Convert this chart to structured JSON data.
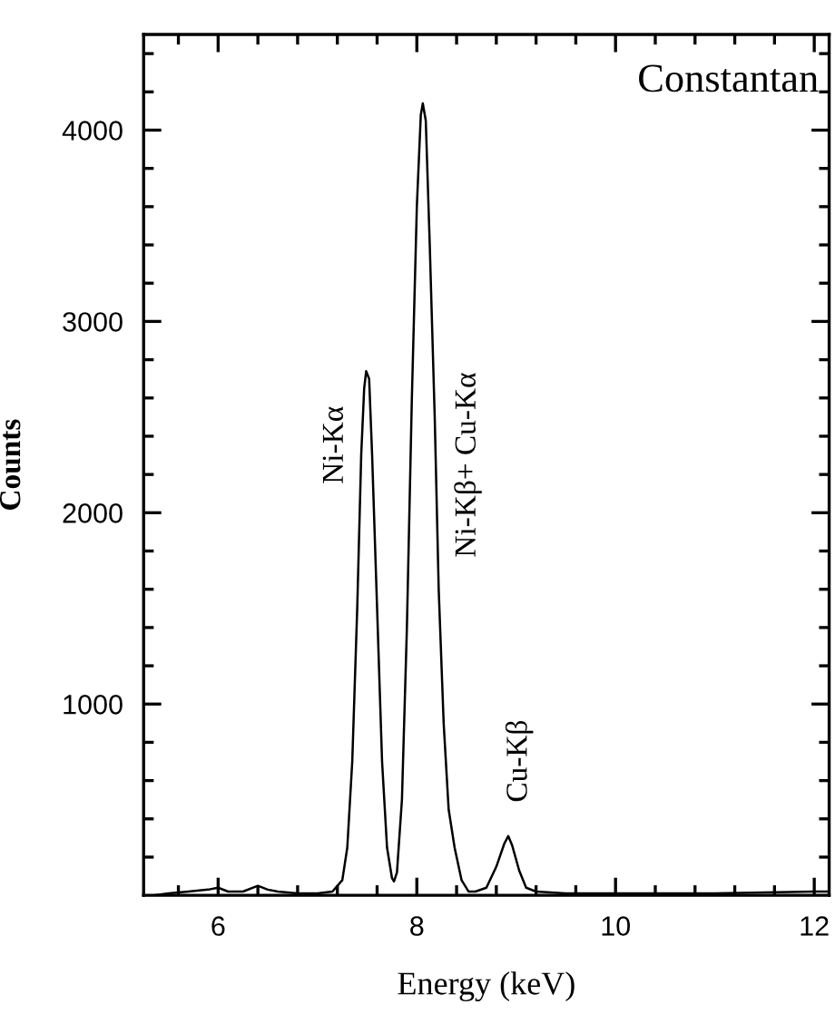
{
  "chart_data": {
    "type": "line",
    "xlabel": "Energy (keV)",
    "ylabel": "Counts",
    "x": [
      5.35,
      5.5,
      5.7,
      5.9,
      6.0,
      6.1,
      6.25,
      6.4,
      6.5,
      6.6,
      6.8,
      7.0,
      7.15,
      7.25,
      7.3,
      7.35,
      7.4,
      7.44,
      7.47,
      7.49,
      7.52,
      7.55,
      7.6,
      7.65,
      7.7,
      7.75,
      7.77,
      7.8,
      7.85,
      7.9,
      7.95,
      8.0,
      8.04,
      8.06,
      8.09,
      8.13,
      8.18,
      8.22,
      8.27,
      8.32,
      8.38,
      8.45,
      8.52,
      8.59,
      8.7,
      8.8,
      8.88,
      8.92,
      8.96,
      9.03,
      9.1,
      9.2,
      9.5,
      10.0,
      11.0,
      12.0,
      12.15
    ],
    "series": [
      {
        "color": "#000000",
        "values": [
          0,
          10,
          20,
          30,
          40,
          20,
          20,
          50,
          30,
          20,
          10,
          10,
          20,
          80,
          250,
          700,
          1500,
          2300,
          2650,
          2740,
          2700,
          2300,
          1500,
          700,
          250,
          90,
          73,
          120,
          500,
          1400,
          2600,
          3600,
          4080,
          4140,
          4050,
          3400,
          2500,
          1600,
          900,
          450,
          250,
          80,
          20,
          20,
          40,
          150,
          270,
          310,
          260,
          130,
          40,
          20,
          10,
          10,
          10,
          20,
          20
        ]
      }
    ],
    "xlim": [
      5.25,
      12.15
    ],
    "ylim": [
      0,
      4500
    ],
    "xticks": [
      {
        "value": 5.6,
        "label": null
      },
      6,
      {
        "value": 6.4,
        "label": null
      },
      {
        "value": 6.8,
        "label": null
      },
      {
        "value": 7.2,
        "label": null
      },
      {
        "value": 7.6,
        "label": null
      },
      8,
      {
        "value": 8.4,
        "label": null
      },
      {
        "value": 8.8,
        "label": null
      },
      {
        "value": 9.2,
        "label": null
      },
      {
        "value": 9.6,
        "label": null
      },
      10,
      {
        "value": 10.4,
        "label": null
      },
      {
        "value": 10.8,
        "label": null
      },
      {
        "value": 11.2,
        "label": null
      },
      {
        "value": 11.6,
        "label": null
      },
      12
    ],
    "yticks": [
      {
        "value": 200,
        "label": null
      },
      {
        "value": 400,
        "label": null
      },
      {
        "value": 600,
        "label": null
      },
      {
        "value": 800,
        "label": null
      },
      1000,
      {
        "value": 1200,
        "label": null
      },
      {
        "value": 1400,
        "label": null
      },
      {
        "value": 1600,
        "label": null
      },
      {
        "value": 1800,
        "label": null
      },
      2000,
      {
        "value": 2200,
        "label": null
      },
      {
        "value": 2400,
        "label": null
      },
      {
        "value": 2600,
        "label": null
      },
      {
        "value": 2800,
        "label": null
      },
      3000,
      {
        "value": 3200,
        "label": null
      },
      {
        "value": 3400,
        "label": null
      },
      {
        "value": 3600,
        "label": null
      },
      {
        "value": 3800,
        "label": null
      },
      4000,
      {
        "value": 4200,
        "label": null
      },
      {
        "value": 4400,
        "label": null
      }
    ],
    "grid": false,
    "marker": "none",
    "line_style": "solid",
    "annotations": [
      "Constantan",
      "Ni-Kα",
      "Ni-Kβ+ Cu-Kα",
      "Cu-Kβ"
    ]
  }
}
